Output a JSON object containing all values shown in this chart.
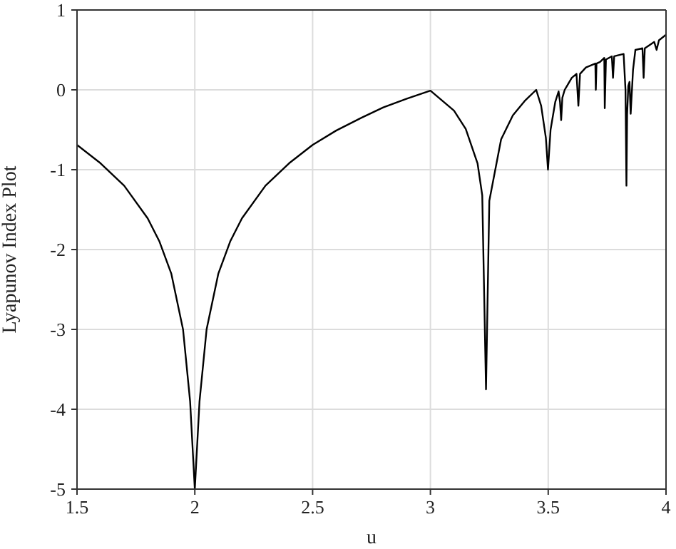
{
  "chart_data": {
    "type": "line",
    "xlabel": "u",
    "ylabel": "Lyapunov Index Plot",
    "xlim": [
      1.5,
      4
    ],
    "ylim": [
      -5,
      1
    ],
    "xticks": [
      1.5,
      2,
      2.5,
      3,
      3.5,
      4
    ],
    "yticks": [
      -5,
      -4,
      -3,
      -2,
      -1,
      0,
      1
    ],
    "grid": true,
    "marker": "none",
    "line_style": "solid",
    "x": [
      1.5,
      1.6,
      1.7,
      1.8,
      1.85,
      1.9,
      1.95,
      1.98,
      2.0,
      2.02,
      2.05,
      2.1,
      2.15,
      2.2,
      2.3,
      2.4,
      2.5,
      2.6,
      2.7,
      2.8,
      2.9,
      3.0,
      3.1,
      3.15,
      3.2,
      3.22,
      3.236,
      3.25,
      3.3,
      3.35,
      3.4,
      3.449,
      3.47,
      3.49,
      3.499,
      3.51,
      3.53,
      3.544,
      3.55,
      3.555,
      3.56,
      3.57,
      3.58,
      3.6,
      3.62,
      3.628,
      3.635,
      3.66,
      3.7,
      3.702,
      3.705,
      3.72,
      3.738,
      3.74,
      3.745,
      3.77,
      3.775,
      3.78,
      3.82,
      3.828,
      3.832,
      3.835,
      3.84,
      3.845,
      3.85,
      3.86,
      3.87,
      3.9,
      3.905,
      3.91,
      3.95,
      3.96,
      3.97,
      4.0
    ],
    "series": [
      {
        "color": "#000000",
        "values": [
          -0.69,
          -0.92,
          -1.2,
          -1.61,
          -1.9,
          -2.3,
          -3.0,
          -3.9,
          -5,
          -3.9,
          -3.0,
          -2.3,
          -1.9,
          -1.61,
          -1.2,
          -0.92,
          -0.69,
          -0.51,
          -0.36,
          -0.22,
          -0.11,
          -0.01,
          -0.26,
          -0.49,
          -0.92,
          -1.32,
          -3.75,
          -1.39,
          -0.62,
          -0.32,
          -0.14,
          0.0,
          -0.2,
          -0.6,
          -1.0,
          -0.5,
          -0.15,
          -0.02,
          -0.15,
          -0.38,
          -0.1,
          0.0,
          0.05,
          0.15,
          0.2,
          -0.2,
          0.2,
          0.28,
          0.33,
          0.0,
          0.33,
          0.35,
          0.4,
          -0.23,
          0.38,
          0.42,
          0.15,
          0.42,
          0.45,
          0.0,
          -1.2,
          -0.3,
          0.05,
          0.1,
          -0.3,
          0.25,
          0.5,
          0.52,
          0.15,
          0.52,
          0.6,
          0.5,
          0.62,
          0.69
        ]
      }
    ]
  }
}
